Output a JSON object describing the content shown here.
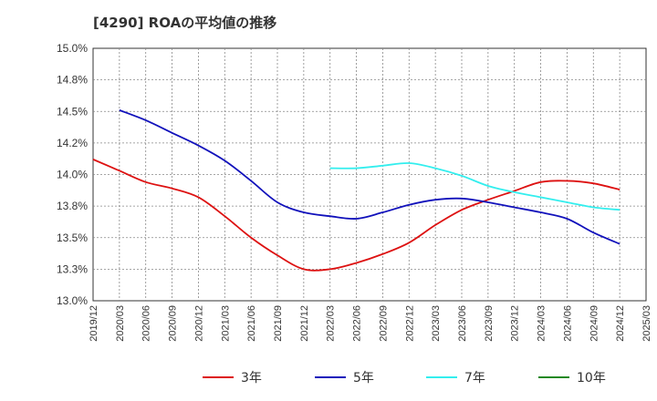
{
  "chart_data": {
    "type": "line",
    "title": "[4290]  ROAの平均値の推移",
    "xlabel": "",
    "ylabel": "",
    "ylim": [
      13.0,
      15.0
    ],
    "y_ticks": [
      "13.0%",
      "13.3%",
      "13.5%",
      "13.8%",
      "14.0%",
      "14.2%",
      "14.5%",
      "14.8%",
      "15.0%"
    ],
    "x_ticks": [
      "2019/12",
      "2020/03",
      "2020/06",
      "2020/09",
      "2020/12",
      "2021/03",
      "2021/06",
      "2021/09",
      "2021/12",
      "2022/03",
      "2022/06",
      "2022/09",
      "2022/12",
      "2023/03",
      "2023/06",
      "2023/09",
      "2023/12",
      "2024/03",
      "2024/06",
      "2024/09",
      "2024/12",
      "2025/03"
    ],
    "grid": true,
    "legend_position": "bottom",
    "series": [
      {
        "name": "3年",
        "color": "#dd1111",
        "values": [
          14.12,
          14.03,
          13.94,
          13.89,
          13.82,
          13.67,
          13.5,
          13.36,
          13.25,
          13.25,
          13.3,
          13.37,
          13.46,
          13.6,
          13.72,
          13.8,
          13.87,
          13.94,
          13.95,
          13.93,
          13.88,
          null
        ]
      },
      {
        "name": "5年",
        "color": "#1111bb",
        "values": [
          null,
          14.51,
          14.43,
          14.33,
          14.23,
          14.11,
          13.95,
          13.78,
          13.7,
          13.67,
          13.65,
          13.7,
          13.76,
          13.8,
          13.81,
          13.78,
          13.74,
          13.7,
          13.65,
          13.54,
          13.45,
          null
        ]
      },
      {
        "name": "7年",
        "color": "#33eeee",
        "values": [
          null,
          null,
          null,
          null,
          null,
          null,
          null,
          null,
          null,
          14.05,
          14.05,
          14.07,
          14.09,
          14.05,
          13.99,
          13.91,
          13.86,
          13.82,
          13.78,
          13.74,
          13.72,
          null
        ]
      },
      {
        "name": "10年",
        "color": "#228822",
        "values": [
          null,
          null,
          null,
          null,
          null,
          null,
          null,
          null,
          null,
          null,
          null,
          null,
          null,
          null,
          null,
          null,
          null,
          null,
          null,
          null,
          null,
          null
        ]
      }
    ]
  }
}
